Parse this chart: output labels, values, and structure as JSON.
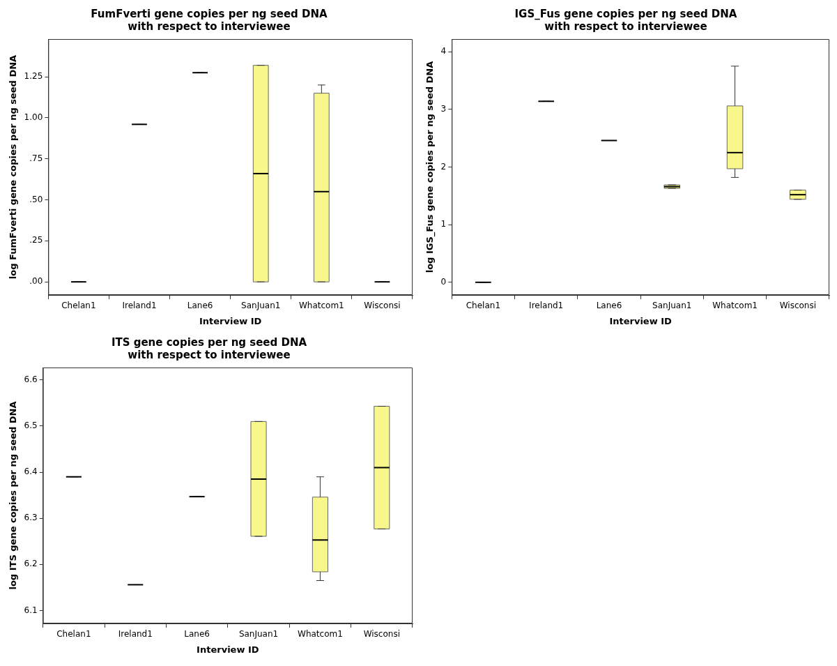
{
  "chart_data": [
    {
      "type": "box",
      "title": "FumFverti gene copies per ng seed DNA",
      "subtitle": "with respect to interviewee",
      "xlabel": "Interview ID",
      "ylabel": "log FumFverti gene copies per ng seed DNA",
      "categories": [
        "Chelan1",
        "Ireland1",
        "Lane6",
        "SanJuan1",
        "Whatcom1",
        "Wisconsi"
      ],
      "colors": [
        "#000000",
        "#000000",
        "#000000",
        "#f7f78c",
        "#f7f78c",
        "#000000"
      ],
      "grid": false,
      "legend": false,
      "ylim": [
        -0.08,
        1.48
      ],
      "yticks": [
        {
          "value": 0,
          "label": ".00"
        },
        {
          "value": 0.25,
          "label": ".25"
        },
        {
          "value": 0.5,
          "label": ".50"
        },
        {
          "value": 0.75,
          "label": ".75"
        },
        {
          "value": 1,
          "label": "1.00"
        },
        {
          "value": 1.25,
          "label": "1.25"
        }
      ],
      "boxes": [
        {
          "low": 0,
          "q1": 0,
          "median": 0,
          "q3": 0,
          "high": 0
        },
        {
          "low": 0.96,
          "q1": 0.96,
          "median": 0.96,
          "q3": 0.96,
          "high": 0.96
        },
        {
          "low": 1.275,
          "q1": 1.275,
          "median": 1.275,
          "q3": 1.275,
          "high": 1.275
        },
        {
          "low": 0,
          "q1": 0,
          "median": 0.66,
          "q3": 1.32,
          "high": 1.32
        },
        {
          "low": 0,
          "q1": 0,
          "median": 0.55,
          "q3": 1.15,
          "high": 1.2
        },
        {
          "low": 0,
          "q1": 0,
          "median": 0,
          "q3": 0,
          "high": 0
        }
      ]
    },
    {
      "type": "box",
      "title": "IGS_Fus gene copies per ng seed DNA",
      "subtitle": "with respect to interviewee",
      "xlabel": "Interview ID",
      "ylabel": "log IGS_Fus gene copies per ng seed DNA",
      "categories": [
        "Chelan1",
        "Ireland1",
        "Lane6",
        "SanJuan1",
        "Whatcom1",
        "Wisconsi"
      ],
      "colors": [
        "#000000",
        "#000000",
        "#000000",
        "#f7f78c",
        "#f7f78c",
        "#f7f78c"
      ],
      "grid": false,
      "legend": false,
      "ylim": [
        -0.22,
        4.22
      ],
      "yticks": [
        0,
        1,
        2,
        3,
        4
      ],
      "boxes": [
        {
          "low": 0,
          "q1": 0,
          "median": 0,
          "q3": 0,
          "high": 0
        },
        {
          "low": 3.14,
          "q1": 3.14,
          "median": 3.14,
          "q3": 3.14,
          "high": 3.14
        },
        {
          "low": 2.46,
          "q1": 2.46,
          "median": 2.46,
          "q3": 2.46,
          "high": 2.46
        },
        {
          "low": 1.63,
          "q1": 1.63,
          "median": 1.66,
          "q3": 1.69,
          "high": 1.69
        },
        {
          "low": 1.82,
          "q1": 1.97,
          "median": 2.25,
          "q3": 3.06,
          "high": 3.75
        },
        {
          "low": 1.44,
          "q1": 1.44,
          "median": 1.52,
          "q3": 1.6,
          "high": 1.6
        }
      ]
    },
    {
      "type": "box",
      "title": "ITS gene copies per ng seed DNA",
      "subtitle": "with respect to interviewee",
      "xlabel": "Interview ID",
      "ylabel": "log ITS gene copies per ng seed DNA",
      "categories": [
        "Chelan1",
        "Ireland1",
        "Lane6",
        "SanJuan1",
        "Whatcom1",
        "Wisconsi"
      ],
      "colors": [
        "#000000",
        "#000000",
        "#000000",
        "#f7f78c",
        "#f7f78c",
        "#f7f78c"
      ],
      "grid": false,
      "legend": false,
      "ylim": [
        6.072,
        6.627
      ],
      "yticks": [
        6.1,
        6.2,
        6.3,
        6.4,
        6.5,
        6.6
      ],
      "boxes": [
        {
          "low": 6.39,
          "q1": 6.39,
          "median": 6.39,
          "q3": 6.39,
          "high": 6.39
        },
        {
          "low": 6.156,
          "q1": 6.156,
          "median": 6.156,
          "q3": 6.156,
          "high": 6.156
        },
        {
          "low": 6.347,
          "q1": 6.347,
          "median": 6.347,
          "q3": 6.347,
          "high": 6.347
        },
        {
          "low": 6.261,
          "q1": 6.261,
          "median": 6.385,
          "q3": 6.51,
          "high": 6.51
        },
        {
          "low": 6.165,
          "q1": 6.184,
          "median": 6.253,
          "q3": 6.346,
          "high": 6.39
        },
        {
          "low": 6.277,
          "q1": 6.277,
          "median": 6.41,
          "q3": 6.543,
          "high": 6.543
        }
      ]
    }
  ]
}
